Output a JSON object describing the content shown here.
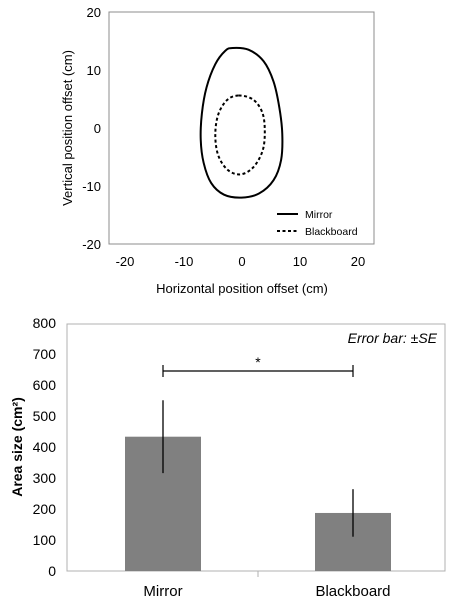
{
  "chart_data": [
    {
      "type": "line",
      "xlabel": "Horizontal position offset (cm)",
      "ylabel": "Vertical position offset (cm)",
      "xlim": [
        -20,
        20
      ],
      "ylim": [
        -20,
        20
      ],
      "xticks": [
        "-20",
        "-10",
        "0",
        "10",
        "20"
      ],
      "yticks": [
        "20",
        "10",
        "0",
        "-10",
        "-20"
      ],
      "legend_position": "bottom-right",
      "series": [
        {
          "name": "Mirror",
          "style": "solid",
          "color": "#000000",
          "points": [
            [
              -1.5,
              13.8
            ],
            [
              1.2,
              13.5
            ],
            [
              3.8,
              11.5
            ],
            [
              5.5,
              8.0
            ],
            [
              6.5,
              3.5
            ],
            [
              7.0,
              -1.0
            ],
            [
              6.8,
              -5.5
            ],
            [
              5.5,
              -9.0
            ],
            [
              3.0,
              -11.3
            ],
            [
              0.0,
              -12.0
            ],
            [
              -3.0,
              -11.5
            ],
            [
              -5.2,
              -9.5
            ],
            [
              -6.5,
              -6.0
            ],
            [
              -7.0,
              -2.0
            ],
            [
              -6.8,
              2.5
            ],
            [
              -6.0,
              7.0
            ],
            [
              -4.5,
              11.0
            ],
            [
              -2.8,
              13.3
            ]
          ]
        },
        {
          "name": "Blackboard",
          "style": "dashed",
          "color": "#000000",
          "points": [
            [
              -0.5,
              5.6
            ],
            [
              2.0,
              4.9
            ],
            [
              3.6,
              2.6
            ],
            [
              4.0,
              -0.7
            ],
            [
              3.6,
              -4.0
            ],
            [
              2.0,
              -6.8
            ],
            [
              -0.2,
              -8.0
            ],
            [
              -2.4,
              -7.2
            ],
            [
              -4.0,
              -4.7
            ],
            [
              -4.5,
              -1.2
            ],
            [
              -4.0,
              2.3
            ],
            [
              -2.5,
              4.8
            ]
          ]
        }
      ]
    },
    {
      "type": "bar",
      "categories": [
        "Mirror",
        "Blackboard"
      ],
      "values": [
        435,
        188
      ],
      "error": [
        118,
        77
      ],
      "ylabel": "Area size (cm²)",
      "ylim": [
        0,
        800
      ],
      "yticks": [
        "0",
        "100",
        "200",
        "300",
        "400",
        "500",
        "600",
        "700",
        "800"
      ],
      "bar_color": "#808080",
      "annotation": "Error bar: ±SE",
      "significance": "*"
    }
  ]
}
